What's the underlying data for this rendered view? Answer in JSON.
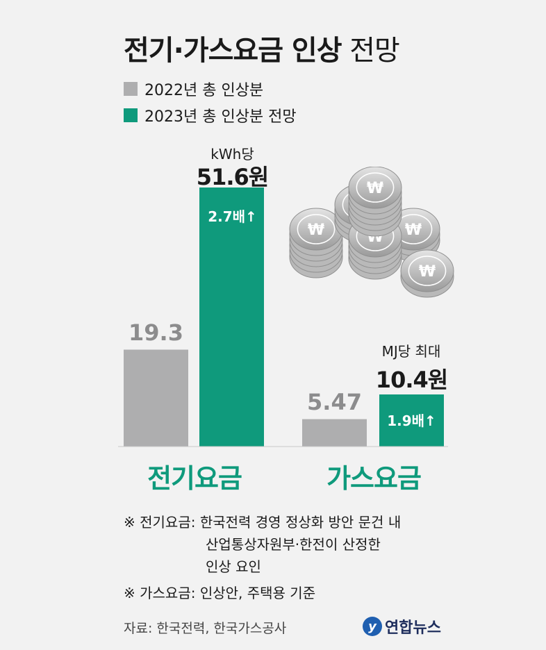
{
  "header": {
    "title_bold": "전기·가스요금 인상",
    "title_light": "전망"
  },
  "legend": [
    {
      "label": "2022년 총 인상분",
      "color": "#aeaeaf"
    },
    {
      "label": "2023년 총 인상분 전망",
      "color": "#0f9a7c"
    }
  ],
  "chart_data": {
    "type": "bar",
    "categories": [
      "전기요금",
      "가스요금"
    ],
    "series": [
      {
        "name": "2022년 총 인상분",
        "values": [
          19.3,
          5.47
        ]
      },
      {
        "name": "2023년 총 인상분 전망",
        "values": [
          51.6,
          10.4
        ]
      }
    ],
    "electric": {
      "unit": "kWh당",
      "value_2022": "19.3",
      "value_2023": "51.6원",
      "ratio": "2.7배↑"
    },
    "gas": {
      "unit": "MJ당 최대",
      "value_2022": "5.47",
      "value_2023": "10.4원",
      "ratio": "1.9배↑"
    },
    "category_labels": {
      "electric": "전기요금",
      "gas": "가스요금"
    },
    "colors": {
      "y2022": "#aeaeaf",
      "y2023": "#0f9a7c",
      "label": "#0f9a7c"
    }
  },
  "notes": [
    {
      "prefix": "※ 전기요금:",
      "lines": [
        "한국전력 경영 정상화 방안 문건 내",
        "산업통상자원부·한전이 산정한",
        "인상 요인"
      ]
    },
    {
      "prefix": "※ 가스요금:",
      "lines": [
        "인상안, 주택용 기준"
      ]
    }
  ],
  "source": "자료: 한국전력, 한국가스공사",
  "logo": {
    "text": "연합뉴스",
    "mark": "y"
  },
  "icons": {
    "coins": "won-coin-stack-icon"
  }
}
